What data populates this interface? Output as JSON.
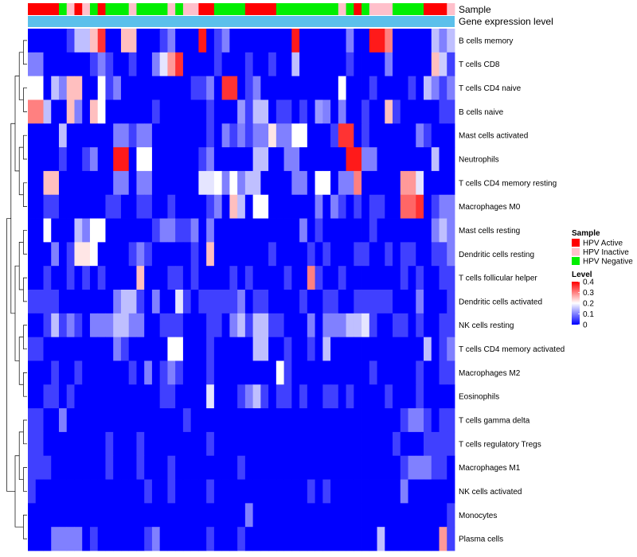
{
  "chart_data": {
    "type": "heatmap",
    "annotation_rows": [
      "Sample",
      "Gene expression level"
    ],
    "sample_annotation": [
      "HPV Active",
      "HPV Active",
      "HPV Active",
      "HPV Active",
      "HPV Negative",
      "HPV Inactive",
      "HPV Active",
      "HPV Inactive",
      "HPV Negative",
      "HPV Active",
      "HPV Negative",
      "HPV Negative",
      "HPV Negative",
      "HPV Inactive",
      "HPV Negative",
      "HPV Negative",
      "HPV Negative",
      "HPV Negative",
      "HPV Inactive",
      "HPV Negative",
      "HPV Inactive",
      "HPV Inactive",
      "HPV Active",
      "HPV Active",
      "HPV Negative",
      "HPV Negative",
      "HPV Negative",
      "HPV Negative",
      "HPV Active",
      "HPV Active",
      "HPV Active",
      "HPV Active",
      "HPV Negative",
      "HPV Negative",
      "HPV Negative",
      "HPV Negative",
      "HPV Negative",
      "HPV Negative",
      "HPV Negative",
      "HPV Negative",
      "HPV Inactive",
      "HPV Negative",
      "HPV Active",
      "HPV Negative",
      "HPV Inactive",
      "HPV Inactive",
      "HPV Inactive",
      "HPV Negative",
      "HPV Negative",
      "HPV Negative",
      "HPV Negative",
      "HPV Active",
      "HPV Active",
      "HPV Active",
      "HPV Inactive"
    ],
    "rows": [
      "B cells memory",
      "T cells CD8",
      "T cells CD4 naive",
      "B cells naive",
      "Mast cells activated",
      "Neutrophils",
      "T cells CD4 memory resting",
      "Macrophages M0",
      "Mast cells resting",
      "Dendritic cells resting",
      "T cells follicular helper",
      "Dendritic cells activated",
      "NK cells resting",
      "T cells CD4 memory activated",
      "Macrophages M2",
      "Eosinophils",
      "T cells gamma delta",
      "T cells regulatory  Tregs",
      "Macrophages M1",
      "NK cells activated",
      "Monocytes",
      "Plasma cells"
    ],
    "values": [
      [
        0,
        0,
        0,
        0,
        0,
        0.05,
        0.15,
        0.15,
        0.25,
        0.36,
        0,
        0,
        0.25,
        0.25,
        0,
        0,
        0,
        0.05,
        0.1,
        0,
        0,
        0,
        0.38,
        0,
        0.05,
        0.1,
        0,
        0,
        0,
        0,
        0,
        0,
        0,
        0,
        0.38,
        0,
        0,
        0,
        0,
        0,
        0,
        0.1,
        0,
        0,
        0.38,
        0.38,
        0.3,
        0,
        0,
        0,
        0,
        0,
        0.15,
        0.1,
        0.15
      ],
      [
        0.1,
        0.1,
        0,
        0,
        0,
        0,
        0,
        0,
        0.05,
        0.1,
        0.05,
        0,
        0,
        0.05,
        0,
        0,
        0.1,
        0.18,
        0.28,
        0.36,
        0,
        0,
        0,
        0,
        0.05,
        0,
        0,
        0,
        0.05,
        0,
        0,
        0.05,
        0,
        0,
        0.15,
        0,
        0,
        0,
        0,
        0,
        0,
        0.05,
        0,
        0,
        0,
        0,
        0.1,
        0,
        0,
        0,
        0,
        0,
        0.25,
        0.16,
        0.05
      ],
      [
        0.2,
        0.2,
        0,
        0.15,
        0.1,
        0.25,
        0.25,
        0,
        0,
        0.2,
        0.05,
        0.1,
        0,
        0,
        0,
        0,
        0,
        0,
        0,
        0,
        0,
        0.05,
        0.05,
        0.1,
        0,
        0.36,
        0.36,
        0,
        0.05,
        0.1,
        0,
        0,
        0,
        0,
        0,
        0,
        0,
        0,
        0,
        0,
        0.2,
        0,
        0,
        0,
        0.05,
        0,
        0,
        0,
        0,
        0.05,
        0,
        0.15,
        0.1,
        0.05,
        0.1
      ],
      [
        0.3,
        0.3,
        0.15,
        0,
        0,
        0.25,
        0.1,
        0,
        0.25,
        0.2,
        0,
        0,
        0,
        0,
        0,
        0,
        0.05,
        0,
        0,
        0,
        0,
        0,
        0,
        0.05,
        0,
        0,
        0,
        0.12,
        0.05,
        0.15,
        0.15,
        0,
        0.05,
        0.05,
        0,
        0.05,
        0,
        0.12,
        0.1,
        0,
        0.1,
        0,
        0,
        0.05,
        0,
        0,
        0.25,
        0.05,
        0,
        0,
        0,
        0,
        0,
        0.05,
        0.05
      ],
      [
        0,
        0,
        0,
        0,
        0.15,
        0,
        0,
        0,
        0,
        0,
        0,
        0.1,
        0.1,
        0.05,
        0.1,
        0.1,
        0,
        0,
        0,
        0,
        0,
        0,
        0,
        0.05,
        0,
        0.1,
        0.05,
        0.1,
        0.05,
        0.1,
        0.1,
        0.22,
        0.1,
        0.1,
        0.2,
        0.2,
        0,
        0,
        0,
        0.05,
        0.36,
        0.36,
        0,
        0.05,
        0,
        0,
        0,
        0,
        0,
        0,
        0.1,
        0.05,
        0,
        0,
        0
      ],
      [
        0,
        0,
        0,
        0,
        0.05,
        0,
        0,
        0.05,
        0.1,
        0,
        0,
        0.38,
        0.38,
        0,
        0.2,
        0.2,
        0,
        0,
        0,
        0,
        0,
        0,
        0.05,
        0.1,
        0,
        0,
        0,
        0,
        0,
        0.15,
        0.15,
        0,
        0,
        0.1,
        0.1,
        0,
        0,
        0,
        0,
        0,
        0,
        0.38,
        0.38,
        0.1,
        0.1,
        0,
        0,
        0,
        0,
        0,
        0,
        0,
        0.15,
        0,
        0
      ],
      [
        0,
        0,
        0.25,
        0.25,
        0,
        0,
        0,
        0,
        0,
        0,
        0,
        0.1,
        0.1,
        0,
        0.1,
        0.1,
        0,
        0,
        0,
        0,
        0,
        0,
        0.18,
        0.18,
        0.2,
        0.1,
        0.2,
        0.1,
        0.15,
        0.15,
        0,
        0,
        0,
        0,
        0.1,
        0.1,
        0,
        0.2,
        0.2,
        0,
        0.1,
        0.1,
        0.3,
        0,
        0,
        0,
        0,
        0,
        0.28,
        0.28,
        0.18,
        0,
        0,
        0,
        0
      ],
      [
        0,
        0,
        0.05,
        0.05,
        0,
        0,
        0,
        0,
        0,
        0,
        0.05,
        0.05,
        0,
        0,
        0.05,
        0.05,
        0,
        0,
        0.05,
        0,
        0,
        0,
        0,
        0.05,
        0.1,
        0,
        0.25,
        0.15,
        0,
        0.2,
        0.2,
        0,
        0,
        0,
        0,
        0,
        0,
        0.1,
        0,
        0.1,
        0.05,
        0,
        0.05,
        0,
        0.05,
        0.05,
        0,
        0,
        0.32,
        0.32,
        0.36,
        0,
        0.05,
        0.1,
        0.1
      ],
      [
        0,
        0,
        0.2,
        0,
        0,
        0,
        0.15,
        0.1,
        0.2,
        0.2,
        0,
        0,
        0,
        0,
        0,
        0,
        0.05,
        0.1,
        0.1,
        0.05,
        0.05,
        0.1,
        0,
        0.1,
        0,
        0,
        0,
        0,
        0,
        0,
        0,
        0,
        0,
        0,
        0,
        0.1,
        0,
        0.05,
        0,
        0,
        0,
        0,
        0,
        0,
        0.05,
        0,
        0,
        0,
        0,
        0,
        0,
        0,
        0.1,
        0.15,
        0.1
      ],
      [
        0,
        0,
        0,
        0.1,
        0,
        0.05,
        0.22,
        0.22,
        0.2,
        0,
        0,
        0,
        0,
        0.05,
        0.1,
        0.05,
        0,
        0,
        0,
        0,
        0,
        0.05,
        0,
        0.25,
        0,
        0,
        0,
        0,
        0,
        0,
        0,
        0.05,
        0,
        0,
        0,
        0,
        0.05,
        0,
        0.05,
        0,
        0,
        0,
        0.05,
        0.05,
        0,
        0,
        0.05,
        0,
        0.05,
        0.05,
        0,
        0,
        0.05,
        0.05,
        0.1
      ],
      [
        0,
        0,
        0.05,
        0,
        0,
        0.05,
        0,
        0.05,
        0,
        0.05,
        0,
        0,
        0,
        0,
        0.25,
        0,
        0,
        0,
        0.05,
        0.05,
        0,
        0.05,
        0,
        0,
        0,
        0,
        0.05,
        0,
        0.05,
        0,
        0,
        0,
        0,
        0.05,
        0,
        0,
        0.3,
        0.05,
        0,
        0,
        0.05,
        0,
        0,
        0,
        0,
        0,
        0,
        0,
        0.05,
        0,
        0.05,
        0,
        0,
        0.05,
        0.05
      ],
      [
        0.05,
        0.05,
        0.05,
        0.05,
        0,
        0,
        0,
        0,
        0,
        0,
        0,
        0.1,
        0.15,
        0.15,
        0.05,
        0,
        0.1,
        0,
        0,
        0.18,
        0.05,
        0,
        0.05,
        0.05,
        0.05,
        0.05,
        0.05,
        0.1,
        0,
        0.05,
        0.05,
        0,
        0,
        0,
        0,
        0.05,
        0,
        0,
        0.05,
        0.05,
        0,
        0,
        0.05,
        0.05,
        0.05,
        0.05,
        0.05,
        0,
        0,
        0,
        0.1,
        0,
        0,
        0,
        0.05
      ],
      [
        0,
        0,
        0.05,
        0.15,
        0.05,
        0.1,
        0.05,
        0,
        0.1,
        0.1,
        0.1,
        0.15,
        0.15,
        0.1,
        0.1,
        0,
        0,
        0.05,
        0.05,
        0.05,
        0,
        0,
        0,
        0.05,
        0.05,
        0,
        0.1,
        0.15,
        0.05,
        0.15,
        0.15,
        0.05,
        0.05,
        0,
        0,
        0,
        0.1,
        0,
        0.1,
        0.1,
        0.1,
        0.15,
        0.15,
        0.18,
        0.05,
        0,
        0,
        0.05,
        0.05,
        0,
        0.05,
        0,
        0,
        0.05,
        0.05
      ],
      [
        0.05,
        0.05,
        0,
        0,
        0,
        0,
        0,
        0,
        0,
        0,
        0,
        0.1,
        0.05,
        0,
        0,
        0,
        0,
        0,
        0.2,
        0.2,
        0,
        0,
        0,
        0.05,
        0,
        0,
        0,
        0,
        0,
        0.15,
        0.15,
        0,
        0,
        0.05,
        0,
        0,
        0.05,
        0,
        0.15,
        0,
        0,
        0,
        0,
        0,
        0,
        0,
        0,
        0,
        0,
        0,
        0,
        0.15,
        0,
        0.05,
        0.1
      ],
      [
        0,
        0,
        0,
        0.05,
        0,
        0,
        0.05,
        0,
        0,
        0,
        0,
        0,
        0,
        0.05,
        0,
        0.1,
        0,
        0.05,
        0.1,
        0.05,
        0,
        0,
        0,
        0.05,
        0,
        0,
        0,
        0,
        0,
        0,
        0,
        0,
        0.2,
        0.05,
        0,
        0,
        0,
        0,
        0,
        0,
        0,
        0,
        0,
        0,
        0.05,
        0,
        0,
        0,
        0,
        0,
        0.05,
        0,
        0,
        0.05,
        0.05
      ],
      [
        0,
        0,
        0.05,
        0.05,
        0,
        0.05,
        0,
        0,
        0,
        0,
        0,
        0,
        0,
        0,
        0,
        0,
        0,
        0.05,
        0.05,
        0,
        0,
        0,
        0,
        0.18,
        0,
        0,
        0,
        0.05,
        0.1,
        0.15,
        0.05,
        0,
        0.05,
        0.05,
        0,
        0.05,
        0,
        0,
        0.05,
        0.05,
        0,
        0.05,
        0,
        0,
        0,
        0,
        0.05,
        0,
        0,
        0,
        0.05,
        0,
        0,
        0,
        0
      ],
      [
        0.05,
        0.05,
        0,
        0,
        0.1,
        0,
        0,
        0,
        0,
        0,
        0,
        0,
        0,
        0,
        0,
        0,
        0,
        0,
        0,
        0,
        0.05,
        0,
        0,
        0,
        0,
        0,
        0,
        0,
        0,
        0,
        0,
        0,
        0,
        0,
        0,
        0,
        0,
        0,
        0,
        0,
        0,
        0,
        0,
        0,
        0,
        0,
        0,
        0,
        0.05,
        0.1,
        0.1,
        0.05,
        0,
        0.05,
        0.05
      ],
      [
        0.05,
        0.05,
        0,
        0,
        0,
        0,
        0,
        0,
        0,
        0,
        0.05,
        0,
        0,
        0,
        0.05,
        0,
        0,
        0,
        0,
        0,
        0,
        0,
        0,
        0.05,
        0,
        0,
        0,
        0,
        0,
        0,
        0,
        0,
        0,
        0,
        0,
        0,
        0,
        0,
        0,
        0,
        0,
        0,
        0,
        0,
        0,
        0,
        0,
        0.05,
        0,
        0,
        0,
        0.05,
        0.05,
        0.05,
        0.05
      ],
      [
        0.05,
        0.05,
        0.05,
        0,
        0,
        0,
        0,
        0,
        0,
        0,
        0.05,
        0,
        0,
        0,
        0.05,
        0,
        0,
        0,
        0.05,
        0,
        0,
        0,
        0,
        0,
        0,
        0,
        0,
        0.05,
        0,
        0,
        0,
        0,
        0,
        0,
        0,
        0,
        0,
        0,
        0,
        0,
        0,
        0,
        0,
        0,
        0,
        0,
        0,
        0,
        0.05,
        0.1,
        0.1,
        0.1,
        0.05,
        0.05,
        0
      ],
      [
        0.05,
        0,
        0,
        0,
        0,
        0,
        0,
        0,
        0,
        0,
        0,
        0,
        0,
        0,
        0,
        0.05,
        0,
        0,
        0.05,
        0,
        0,
        0,
        0,
        0.05,
        0,
        0,
        0,
        0,
        0,
        0,
        0,
        0,
        0,
        0,
        0,
        0,
        0.05,
        0,
        0.05,
        0,
        0,
        0,
        0,
        0,
        0,
        0,
        0,
        0,
        0.1,
        0,
        0,
        0,
        0,
        0,
        0
      ],
      [
        0,
        0,
        0,
        0,
        0,
        0,
        0,
        0,
        0,
        0,
        0,
        0,
        0,
        0,
        0,
        0,
        0,
        0,
        0,
        0,
        0,
        0,
        0,
        0,
        0,
        0,
        0,
        0,
        0.1,
        0,
        0,
        0,
        0,
        0,
        0,
        0,
        0,
        0,
        0,
        0,
        0,
        0,
        0,
        0,
        0,
        0,
        0,
        0,
        0,
        0,
        0,
        0,
        0,
        0,
        0.05
      ],
      [
        0,
        0,
        0,
        0.1,
        0.1,
        0.1,
        0.1,
        0,
        0.05,
        0,
        0,
        0,
        0,
        0,
        0,
        0.05,
        0.1,
        0,
        0,
        0,
        0,
        0,
        0,
        0.05,
        0,
        0,
        0,
        0.05,
        0,
        0,
        0,
        0,
        0,
        0,
        0,
        0,
        0,
        0,
        0,
        0,
        0,
        0,
        0,
        0,
        0,
        0.15,
        0,
        0,
        0,
        0,
        0,
        0,
        0,
        0.28,
        0.05
      ]
    ],
    "legends": [
      {
        "title": "Sample",
        "items": [
          {
            "label": "HPV Active",
            "color": "#ff0000"
          },
          {
            "label": "HPV Inactive",
            "color": "#ffc0cb"
          },
          {
            "label": "HPV Negative",
            "color": "#00ee00"
          }
        ]
      },
      {
        "title": "Level",
        "ticks": [
          "0.4",
          "0.3",
          "0.2",
          "0.1",
          "0"
        ],
        "tick_values": [
          0.4,
          0.3,
          0.2,
          0.1,
          0
        ]
      }
    ],
    "color_scale": {
      "low": "#0000ff",
      "mid": "#ffffff",
      "high": "#ff0000",
      "range": [
        0,
        0.4
      ],
      "midpoint": 0.2
    },
    "gene_expression_bar_color": "#5bc0eb",
    "row_dendrogram": true
  }
}
